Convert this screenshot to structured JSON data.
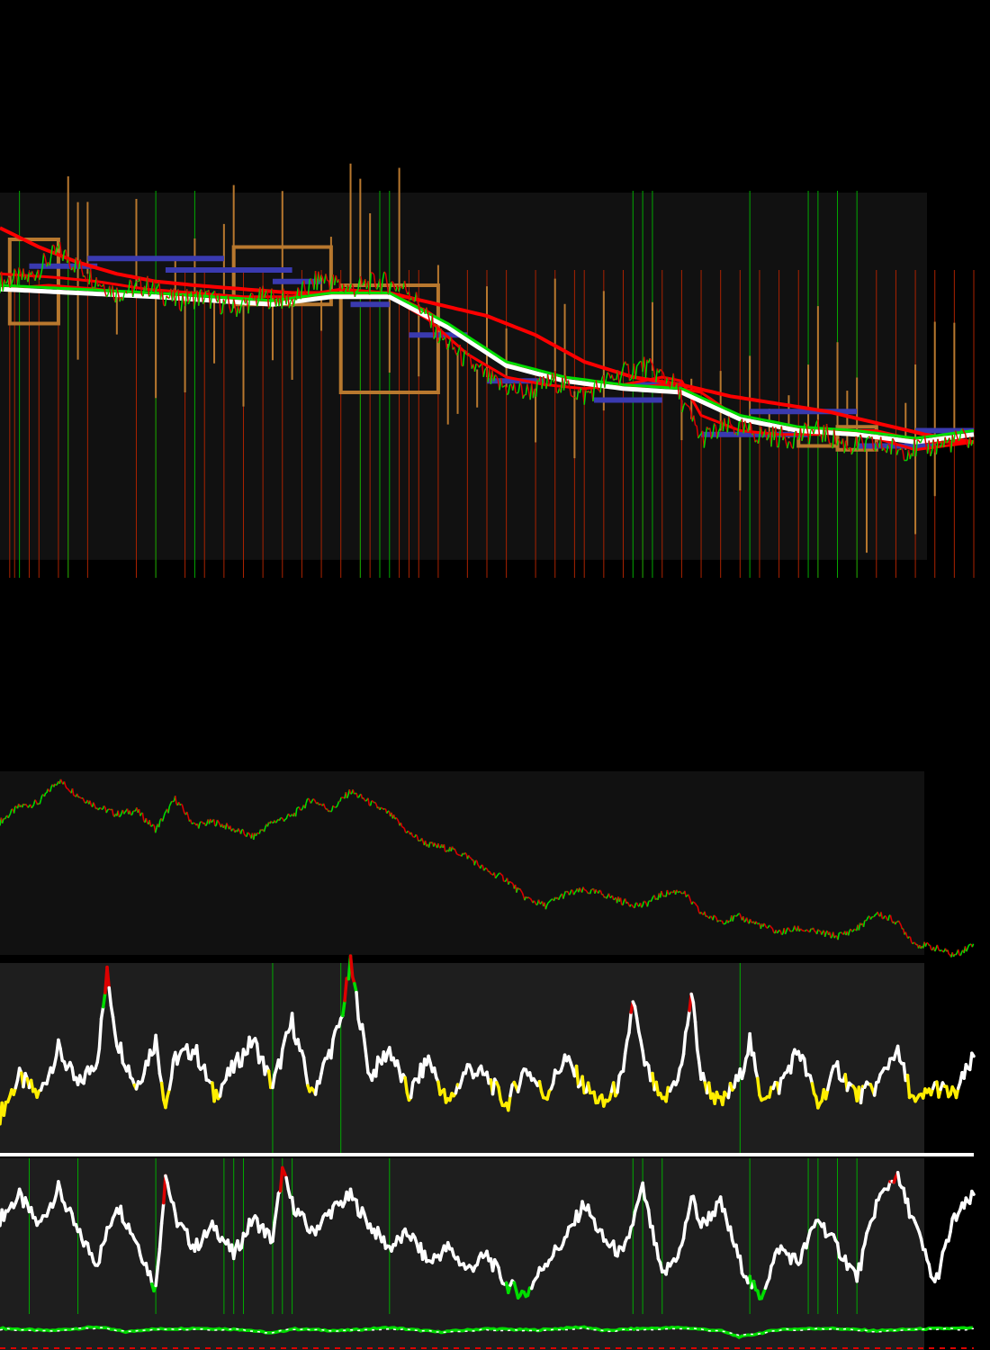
{
  "colors": {
    "background": "#000000",
    "panel": "#111111",
    "panel_light": "#1e1e1e",
    "up": "#00dd00",
    "down": "#dd0000",
    "ma": "#ff0000",
    "support": "#3a3ab0",
    "zone": "#b8782e",
    "white": "#ffffff",
    "yellow": "#ffee00",
    "event_green": "#00aa00",
    "event_red": "#aa2200"
  },
  "chart_data": [
    {
      "type": "line",
      "name": "price-with-moving-averages",
      "x_range": [
        0,
        100
      ],
      "y_range": [
        0,
        100
      ],
      "series": [
        {
          "key": "price",
          "x": [
            0,
            3,
            6,
            9,
            12,
            15,
            18,
            21,
            24,
            27,
            30,
            33,
            36,
            39,
            42,
            45,
            48,
            51,
            54,
            57,
            60,
            63,
            66,
            69,
            72,
            75,
            78,
            81,
            84,
            87,
            90,
            93,
            96,
            99,
            100
          ],
          "y": [
            77,
            78,
            85,
            79,
            74,
            76,
            72,
            73,
            70,
            73,
            72,
            78,
            75,
            77,
            75,
            63,
            56,
            50,
            48,
            51,
            47,
            52,
            55,
            51,
            36,
            39,
            37,
            36,
            38,
            34,
            34,
            33,
            34,
            36,
            35
          ]
        },
        {
          "key": "ma_fast",
          "x": [
            0,
            5,
            10,
            16,
            20,
            25,
            30,
            34,
            38,
            40,
            44,
            48,
            52,
            56,
            60,
            64,
            68,
            70,
            72,
            76,
            80,
            84,
            87,
            90,
            94,
            97,
            100
          ],
          "y": [
            75,
            76,
            75,
            73,
            74,
            72,
            72,
            74,
            74,
            73,
            67,
            58,
            52,
            50,
            49,
            50,
            52,
            51,
            42,
            38,
            37,
            37,
            38,
            36,
            33,
            34,
            35
          ]
        },
        {
          "key": "ma_mid",
          "x": [
            0,
            6,
            10,
            15,
            20,
            25,
            30,
            35,
            40,
            44,
            48,
            52,
            56,
            60,
            64,
            68,
            72,
            76,
            80,
            85,
            90,
            95,
            100
          ],
          "y": [
            79,
            78,
            77,
            75,
            74,
            73,
            73,
            75,
            74,
            69,
            62,
            56,
            52,
            50,
            49,
            50,
            48,
            41,
            39,
            38,
            38,
            35,
            35
          ]
        },
        {
          "key": "ma_slow",
          "x": [
            0,
            4,
            8,
            12,
            16,
            20,
            25,
            30,
            35,
            40,
            45,
            50,
            55,
            60,
            65,
            70,
            75,
            80,
            85,
            90,
            95,
            100
          ],
          "y": [
            91,
            86,
            82,
            79,
            77,
            76,
            75,
            74,
            74,
            74,
            71,
            68,
            63,
            56,
            52,
            50,
            47,
            45,
            43,
            40,
            37,
            35
          ]
        },
        {
          "key": "ma_base",
          "x": [
            0,
            8,
            16,
            22,
            28,
            34,
            40,
            46,
            52,
            58,
            64,
            70,
            76,
            82,
            88,
            94,
            100
          ],
          "y": [
            75,
            74,
            73,
            72,
            71,
            73,
            73,
            65,
            55,
            51,
            49,
            48,
            41,
            38,
            37,
            35,
            37
          ]
        }
      ],
      "support_levels": [
        {
          "x": [
            3,
            10
          ],
          "y": 81
        },
        {
          "x": [
            9,
            23
          ],
          "y": 83
        },
        {
          "x": [
            17,
            30
          ],
          "y": 80
        },
        {
          "x": [
            28,
            33
          ],
          "y": 77
        },
        {
          "x": [
            36,
            40
          ],
          "y": 71
        },
        {
          "x": [
            42,
            48
          ],
          "y": 63
        },
        {
          "x": [
            50,
            56
          ],
          "y": 51
        },
        {
          "x": [
            61,
            68
          ],
          "y": 46
        },
        {
          "x": [
            65,
            70
          ],
          "y": 50
        },
        {
          "x": [
            72,
            83
          ],
          "y": 37
        },
        {
          "x": [
            77,
            88
          ],
          "y": 43
        },
        {
          "x": [
            88,
            96
          ],
          "y": 34
        },
        {
          "x": [
            94,
            100
          ],
          "y": 38
        }
      ],
      "zone_boxes": [
        {
          "x": [
            1,
            6
          ],
          "y": [
            66,
            88
          ]
        },
        {
          "x": [
            24,
            34
          ],
          "y": [
            71,
            86
          ]
        },
        {
          "x": [
            35,
            45
          ],
          "y": [
            48,
            76
          ]
        },
        {
          "x": [
            82,
            86
          ],
          "y": [
            34,
            38
          ]
        },
        {
          "x": [
            86,
            90
          ],
          "y": [
            33,
            39
          ]
        }
      ],
      "spikes_up": [
        7,
        8,
        9,
        14,
        18,
        20,
        23,
        24,
        29,
        34,
        36,
        37,
        38,
        41,
        45,
        50,
        52,
        57,
        58,
        62,
        67,
        71,
        74,
        77,
        79,
        81,
        83,
        84,
        86,
        87,
        88,
        93,
        94,
        96,
        98
      ],
      "spikes_down": [
        8,
        12,
        16,
        19,
        22,
        25,
        28,
        30,
        33,
        40,
        43,
        46,
        47,
        49,
        55,
        59,
        62,
        70,
        76,
        89,
        94,
        96
      ],
      "event_lines_green": [
        2,
        7,
        16,
        20,
        37,
        39,
        40,
        65,
        66,
        67,
        77,
        83,
        84,
        86,
        88
      ],
      "event_lines_red": [
        1,
        1.5,
        3,
        4,
        6,
        7,
        9,
        14,
        16,
        19,
        21,
        23,
        25,
        27,
        29,
        31,
        33,
        35,
        37,
        38,
        39,
        41,
        42,
        43,
        45,
        48,
        50,
        52,
        55,
        57,
        59,
        60,
        62,
        64,
        66,
        68,
        70,
        72,
        74,
        76,
        78,
        80,
        82,
        84,
        86,
        88,
        90,
        92,
        94,
        96,
        98,
        100
      ]
    },
    {
      "type": "line",
      "name": "price-overview",
      "x_range": [
        0,
        100
      ],
      "y_range": [
        0,
        100
      ],
      "series": [
        {
          "key": "close",
          "x": [
            0,
            2,
            4,
            6,
            8,
            10,
            12,
            14,
            16,
            18,
            20,
            22,
            24,
            26,
            28,
            30,
            32,
            34,
            36,
            38,
            40,
            42,
            44,
            46,
            48,
            50,
            52,
            54,
            56,
            58,
            60,
            62,
            64,
            66,
            68,
            70,
            72,
            74,
            76,
            78,
            80,
            82,
            84,
            86,
            88,
            90,
            92,
            94,
            96,
            98,
            100
          ],
          "y": [
            74,
            82,
            84,
            96,
            88,
            82,
            78,
            80,
            70,
            86,
            72,
            74,
            70,
            66,
            74,
            77,
            86,
            80,
            90,
            84,
            78,
            68,
            62,
            60,
            56,
            48,
            44,
            34,
            30,
            36,
            38,
            36,
            32,
            30,
            36,
            38,
            26,
            22,
            24,
            20,
            16,
            18,
            16,
            14,
            18,
            26,
            22,
            10,
            8,
            4,
            10
          ]
        }
      ]
    },
    {
      "type": "line",
      "name": "oscillator-1",
      "x_range": [
        0,
        100
      ],
      "y_range": [
        0,
        100
      ],
      "series": [
        {
          "key": "osc1",
          "x": [
            0,
            2,
            4,
            6,
            8,
            10,
            11,
            12,
            14,
            16,
            17,
            18,
            20,
            22,
            24,
            26,
            28,
            30,
            32,
            34,
            35,
            36,
            38,
            40,
            42,
            44,
            46,
            48,
            50,
            52,
            54,
            56,
            58,
            60,
            62,
            64,
            65,
            66,
            68,
            70,
            71,
            72,
            74,
            76,
            77,
            78,
            80,
            82,
            84,
            86,
            88,
            90,
            92,
            94,
            96,
            98,
            100
          ],
          "y": [
            20,
            40,
            30,
            55,
            35,
            50,
            95,
            60,
            35,
            60,
            25,
            50,
            55,
            30,
            45,
            60,
            35,
            70,
            30,
            55,
            70,
            100,
            40,
            55,
            30,
            50,
            25,
            45,
            40,
            25,
            45,
            30,
            50,
            35,
            25,
            40,
            82,
            50,
            25,
            45,
            85,
            40,
            25,
            40,
            60,
            30,
            35,
            55,
            25,
            45,
            30,
            35,
            55,
            25,
            35,
            30,
            50
          ]
        }
      ],
      "spike_thresholds": {
        "green": 78,
        "red": 80,
        "yellow": 35
      },
      "event_lines": [
        28,
        35,
        76
      ]
    },
    {
      "type": "line",
      "name": "oscillator-2",
      "x_range": [
        0,
        100
      ],
      "y_range": [
        0,
        100
      ],
      "series": [
        {
          "key": "osc2",
          "x": [
            0,
            2,
            4,
            6,
            8,
            10,
            12,
            14,
            16,
            17,
            18,
            20,
            22,
            24,
            26,
            28,
            29,
            30,
            32,
            34,
            36,
            38,
            40,
            42,
            44,
            46,
            48,
            50,
            52,
            54,
            56,
            58,
            60,
            62,
            64,
            66,
            68,
            70,
            71,
            72,
            74,
            76,
            78,
            80,
            82,
            84,
            86,
            88,
            90,
            92,
            94,
            96,
            98,
            100
          ],
          "y": [
            60,
            75,
            55,
            80,
            50,
            30,
            70,
            45,
            12,
            90,
            60,
            40,
            55,
            35,
            60,
            45,
            92,
            70,
            50,
            65,
            75,
            55,
            40,
            50,
            30,
            40,
            25,
            35,
            15,
            8,
            30,
            45,
            70,
            45,
            35,
            80,
            20,
            40,
            75,
            55,
            70,
            30,
            5,
            40,
            30,
            60,
            40,
            20,
            70,
            90,
            55,
            15,
            60,
            75
          ]
        }
      ],
      "spike_thresholds": {
        "green": 15,
        "red": 85
      },
      "event_lines": [
        3,
        8,
        16,
        23,
        24,
        25,
        28,
        29,
        30,
        40,
        65,
        66,
        68,
        77,
        83,
        84,
        86,
        88
      ]
    },
    {
      "type": "line",
      "name": "oscillator-3",
      "x_range": [
        0,
        100
      ],
      "y_range": [
        0,
        100
      ],
      "series": [
        {
          "key": "osc3",
          "x": [
            0,
            5,
            10,
            13,
            15,
            20,
            25,
            28,
            30,
            35,
            40,
            45,
            50,
            55,
            60,
            62,
            65,
            70,
            74,
            76,
            78,
            80,
            85,
            90,
            95,
            100
          ],
          "y": [
            80,
            60,
            90,
            50,
            70,
            80,
            70,
            40,
            75,
            60,
            85,
            50,
            75,
            65,
            90,
            60,
            75,
            85,
            60,
            10,
            40,
            70,
            80,
            60,
            75,
            80
          ]
        }
      ]
    }
  ]
}
